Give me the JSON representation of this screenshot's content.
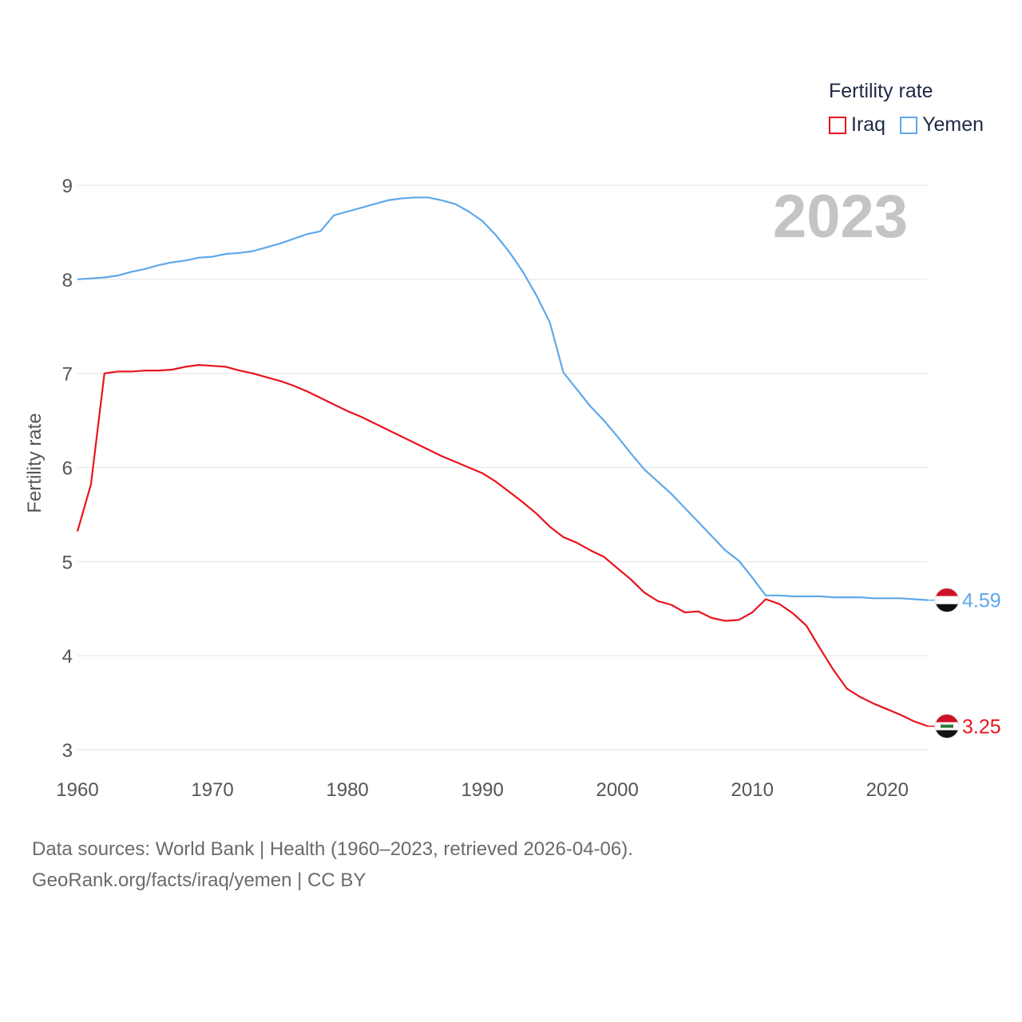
{
  "legend": {
    "title": "Fertility rate",
    "items": [
      {
        "label": "Iraq",
        "color": "#e8141c"
      },
      {
        "label": "Yemen",
        "color": "#5ea8e8"
      }
    ]
  },
  "year_label": "2023",
  "source_line1": "Data sources: World Bank | Health (1960–2023, retrieved 2026-04-06).",
  "source_line2": "GeoRank.org/facts/iraq/yemen | CC BY",
  "chart_data": {
    "type": "line",
    "title": "Fertility rate",
    "xlabel": "",
    "ylabel": "Fertility rate",
    "xlim": [
      1960,
      2023
    ],
    "ylim": [
      3,
      9
    ],
    "xticks": [
      1960,
      1970,
      1980,
      1990,
      2000,
      2010,
      2020
    ],
    "yticks": [
      3,
      4,
      5,
      6,
      7,
      8,
      9
    ],
    "grid": true,
    "legend_position": "top-right",
    "x": [
      1960,
      1961,
      1962,
      1963,
      1964,
      1965,
      1966,
      1967,
      1968,
      1969,
      1970,
      1971,
      1972,
      1973,
      1974,
      1975,
      1976,
      1977,
      1978,
      1979,
      1980,
      1981,
      1982,
      1983,
      1984,
      1985,
      1986,
      1987,
      1988,
      1989,
      1990,
      1991,
      1992,
      1993,
      1994,
      1995,
      1996,
      1997,
      1998,
      1999,
      2000,
      2001,
      2002,
      2003,
      2004,
      2005,
      2006,
      2007,
      2008,
      2009,
      2010,
      2011,
      2012,
      2013,
      2014,
      2015,
      2016,
      2017,
      2018,
      2019,
      2020,
      2021,
      2022,
      2023
    ],
    "series": [
      {
        "name": "Iraq",
        "color": "#e8141c",
        "end_label": "3.25",
        "values": [
          5.32,
          5.82,
          7.0,
          7.02,
          7.02,
          7.03,
          7.03,
          7.04,
          7.07,
          7.09,
          7.08,
          7.07,
          7.03,
          7.0,
          6.96,
          6.92,
          6.87,
          6.81,
          6.74,
          6.67,
          6.6,
          6.54,
          6.47,
          6.4,
          6.33,
          6.26,
          6.19,
          6.12,
          6.06,
          6.0,
          5.94,
          5.85,
          5.74,
          5.63,
          5.51,
          5.37,
          5.26,
          5.2,
          5.12,
          5.05,
          4.93,
          4.81,
          4.67,
          4.58,
          4.54,
          4.46,
          4.47,
          4.4,
          4.37,
          4.38,
          4.46,
          4.6,
          4.55,
          4.45,
          4.32,
          4.08,
          3.85,
          3.65,
          3.56,
          3.49,
          3.43,
          3.37,
          3.3,
          3.25
        ]
      },
      {
        "name": "Yemen",
        "color": "#5ea8e8",
        "end_label": "4.59",
        "values": [
          8.0,
          8.01,
          8.02,
          8.04,
          8.08,
          8.11,
          8.15,
          8.18,
          8.2,
          8.23,
          8.24,
          8.27,
          8.28,
          8.3,
          8.34,
          8.38,
          8.43,
          8.48,
          8.51,
          8.68,
          8.72,
          8.76,
          8.8,
          8.84,
          8.86,
          8.87,
          8.87,
          8.84,
          8.8,
          8.72,
          8.62,
          8.47,
          8.29,
          8.08,
          7.83,
          7.54,
          7.01,
          6.83,
          6.65,
          6.5,
          6.33,
          6.15,
          5.98,
          5.85,
          5.72,
          5.57,
          5.42,
          5.27,
          5.12,
          5.01,
          4.83,
          4.64,
          4.64,
          4.63,
          4.63,
          4.63,
          4.62,
          4.62,
          4.62,
          4.61,
          4.61,
          4.61,
          4.6,
          4.59
        ]
      }
    ]
  }
}
